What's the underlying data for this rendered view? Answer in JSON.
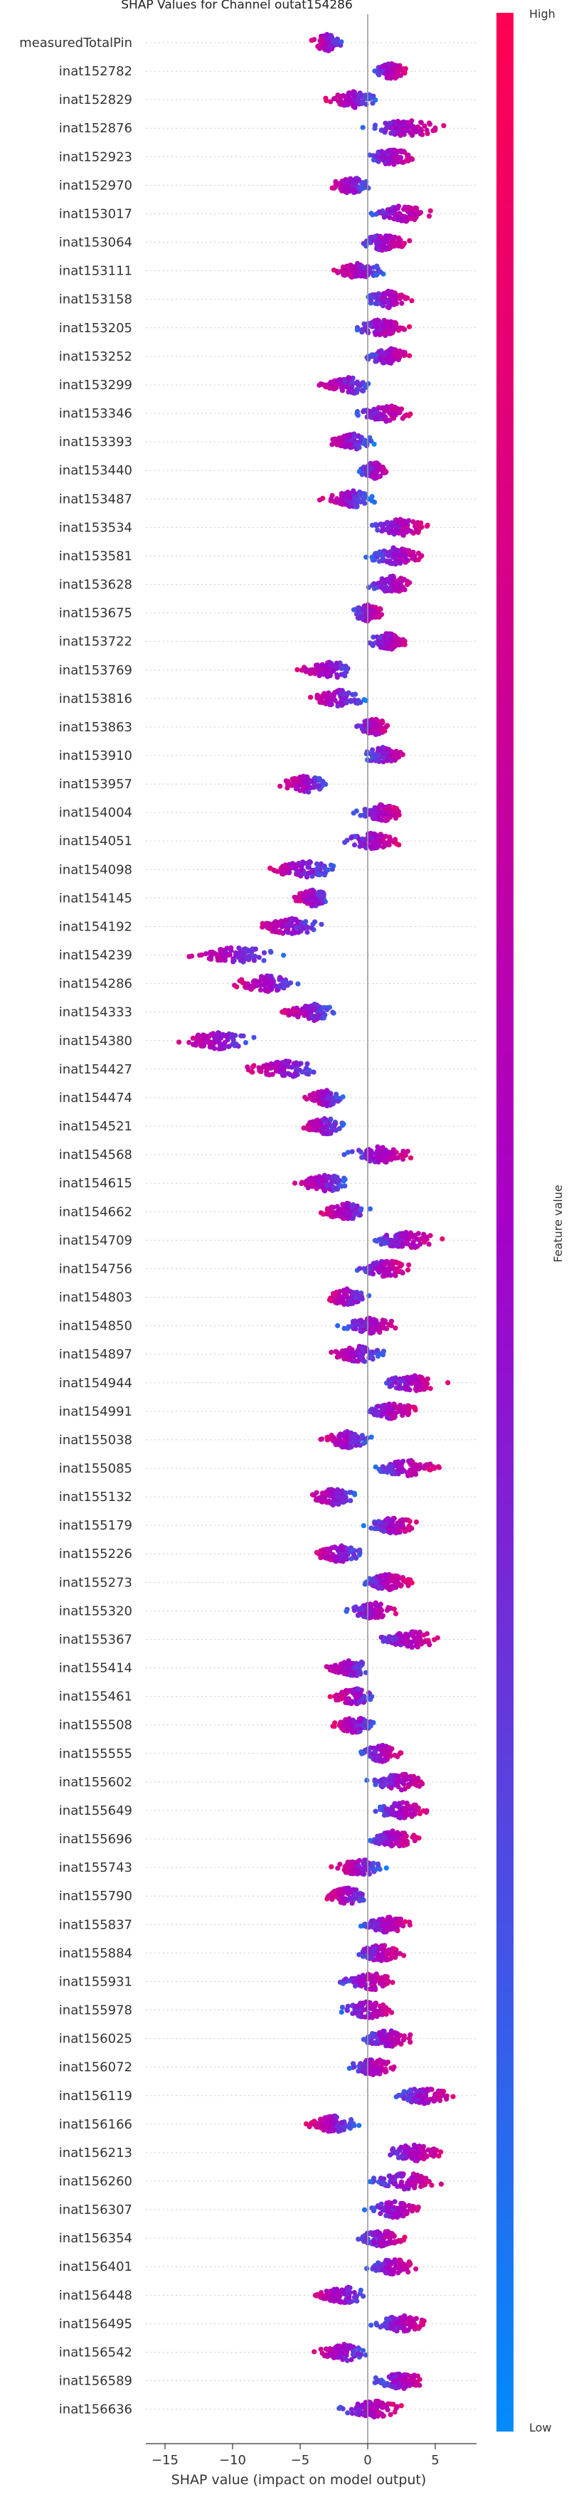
{
  "chart_data": {
    "type": "scatter",
    "subtype": "shap-beeswarm",
    "title": "SHAP Values for Channel outat154286",
    "xlabel": "SHAP value (impact on model output)",
    "xlim": [
      -17,
      8
    ],
    "xticks": [
      -15,
      -10,
      -5,
      0,
      5
    ],
    "colorbar": {
      "label": "Feature value",
      "high_label": "High",
      "low_label": "Low",
      "high_color": "#ff0052",
      "low_color": "#008bfb"
    },
    "features": [
      {
        "name": "measuredTotalPin",
        "lo": -4.5,
        "hi": -1.5,
        "center": -3.0
      },
      {
        "name": "inat152782",
        "lo": 0.0,
        "hi": 3.0,
        "center": 1.8
      },
      {
        "name": "inat152829",
        "lo": -3.5,
        "hi": 1.0,
        "center": -1.0
      },
      {
        "name": "inat152876",
        "lo": -1.0,
        "hi": 6.0,
        "center": 3.0
      },
      {
        "name": "inat152923",
        "lo": -0.5,
        "hi": 4.0,
        "center": 1.8
      },
      {
        "name": "inat152970",
        "lo": -3.5,
        "hi": 0.5,
        "center": -1.2
      },
      {
        "name": "inat153017",
        "lo": -0.5,
        "hi": 5.0,
        "center": 2.5
      },
      {
        "name": "inat153064",
        "lo": -1.0,
        "hi": 3.5,
        "center": 1.2
      },
      {
        "name": "inat153111",
        "lo": -3.0,
        "hi": 1.5,
        "center": -0.5
      },
      {
        "name": "inat153158",
        "lo": -0.5,
        "hi": 3.5,
        "center": 1.5
      },
      {
        "name": "inat153205",
        "lo": -1.5,
        "hi": 3.5,
        "center": 1.0
      },
      {
        "name": "inat153252",
        "lo": -0.5,
        "hi": 3.5,
        "center": 1.5
      },
      {
        "name": "inat153299",
        "lo": -4.5,
        "hi": 0.5,
        "center": -1.0
      },
      {
        "name": "inat153346",
        "lo": -1.5,
        "hi": 3.5,
        "center": 1.5
      },
      {
        "name": "inat153393",
        "lo": -3.5,
        "hi": 0.5,
        "center": -1.0
      },
      {
        "name": "inat153440",
        "lo": -1.0,
        "hi": 2.0,
        "center": 0.5
      },
      {
        "name": "inat153487",
        "lo": -4.0,
        "hi": 0.5,
        "center": -1.0
      },
      {
        "name": "inat153534",
        "lo": -0.5,
        "hi": 5.0,
        "center": 2.5
      },
      {
        "name": "inat153581",
        "lo": -0.5,
        "hi": 5.0,
        "center": 2.0
      },
      {
        "name": "inat153628",
        "lo": -0.5,
        "hi": 4.0,
        "center": 1.8
      },
      {
        "name": "inat153675",
        "lo": -1.5,
        "hi": 1.5,
        "center": 0.0
      },
      {
        "name": "inat153722",
        "lo": -0.5,
        "hi": 3.5,
        "center": 1.5
      },
      {
        "name": "inat153769",
        "lo": -6.0,
        "hi": -0.5,
        "center": -2.5
      },
      {
        "name": "inat153816",
        "lo": -5.0,
        "hi": 0.0,
        "center": -2.0
      },
      {
        "name": "inat153863",
        "lo": -1.5,
        "hi": 2.0,
        "center": 0.5
      },
      {
        "name": "inat153910",
        "lo": -0.5,
        "hi": 3.5,
        "center": 1.0
      },
      {
        "name": "inat153957",
        "lo": -7.0,
        "hi": -2.5,
        "center": -4.5
      },
      {
        "name": "inat154004",
        "lo": -1.5,
        "hi": 3.0,
        "center": 1.2
      },
      {
        "name": "inat154051",
        "lo": -2.5,
        "hi": 3.0,
        "center": 0.5
      },
      {
        "name": "inat154098",
        "lo": -8.5,
        "hi": -2.0,
        "center": -4.5
      },
      {
        "name": "inat154145",
        "lo": -6.0,
        "hi": -2.5,
        "center": -4.0
      },
      {
        "name": "inat154192",
        "lo": -9.0,
        "hi": -3.0,
        "center": -5.5
      },
      {
        "name": "inat154239",
        "lo": -14.5,
        "hi": -6.0,
        "center": -9.5
      },
      {
        "name": "inat154286",
        "lo": -10.5,
        "hi": -4.5,
        "center": -7.5
      },
      {
        "name": "inat154333",
        "lo": -7.0,
        "hi": -2.0,
        "center": -4.0
      },
      {
        "name": "inat154380",
        "lo": -15.0,
        "hi": -7.5,
        "center": -11.0
      },
      {
        "name": "inat154427",
        "lo": -10.0,
        "hi": -3.0,
        "center": -6.0
      },
      {
        "name": "inat154474",
        "lo": -5.0,
        "hi": -1.5,
        "center": -3.0
      },
      {
        "name": "inat154521",
        "lo": -5.5,
        "hi": -1.5,
        "center": -3.0
      },
      {
        "name": "inat154568",
        "lo": -2.0,
        "hi": 4.0,
        "center": 1.0
      },
      {
        "name": "inat154615",
        "lo": -6.0,
        "hi": -1.0,
        "center": -3.0
      },
      {
        "name": "inat154662",
        "lo": -4.0,
        "hi": 0.5,
        "center": -1.5
      },
      {
        "name": "inat154709",
        "lo": -0.5,
        "hi": 6.0,
        "center": 3.0
      },
      {
        "name": "inat154756",
        "lo": -1.5,
        "hi": 3.5,
        "center": 1.5
      },
      {
        "name": "inat154803",
        "lo": -3.5,
        "hi": 0.5,
        "center": -1.5
      },
      {
        "name": "inat154850",
        "lo": -2.5,
        "hi": 3.0,
        "center": 0.5
      },
      {
        "name": "inat154897",
        "lo": -3.5,
        "hi": 1.5,
        "center": -0.5
      },
      {
        "name": "inat154944",
        "lo": 0.0,
        "hi": 6.0,
        "center": 3.5
      },
      {
        "name": "inat154991",
        "lo": -1.0,
        "hi": 4.0,
        "center": 2.0
      },
      {
        "name": "inat155038",
        "lo": -4.0,
        "hi": 0.5,
        "center": -1.5
      },
      {
        "name": "inat155085",
        "lo": 0.0,
        "hi": 5.5,
        "center": 3.0
      },
      {
        "name": "inat155132",
        "lo": -5.0,
        "hi": -0.5,
        "center": -2.5
      },
      {
        "name": "inat155179",
        "lo": -0.5,
        "hi": 4.0,
        "center": 2.0
      },
      {
        "name": "inat155226",
        "lo": -4.5,
        "hi": 0.0,
        "center": -2.0
      },
      {
        "name": "inat155273",
        "lo": -1.0,
        "hi": 3.5,
        "center": 1.5
      },
      {
        "name": "inat155320",
        "lo": -2.0,
        "hi": 2.5,
        "center": 0.5
      },
      {
        "name": "inat155367",
        "lo": -0.5,
        "hi": 6.0,
        "center": 3.5
      },
      {
        "name": "inat155414",
        "lo": -4.0,
        "hi": 0.5,
        "center": -1.0
      },
      {
        "name": "inat155461",
        "lo": -3.0,
        "hi": 1.0,
        "center": -1.0
      },
      {
        "name": "inat155508",
        "lo": -3.0,
        "hi": 1.0,
        "center": -1.0
      },
      {
        "name": "inat155555",
        "lo": -1.0,
        "hi": 3.0,
        "center": 1.0
      },
      {
        "name": "inat155602",
        "lo": -0.5,
        "hi": 5.0,
        "center": 2.5
      },
      {
        "name": "inat155649",
        "lo": 0.0,
        "hi": 5.0,
        "center": 2.5
      },
      {
        "name": "inat155696",
        "lo": -0.5,
        "hi": 4.0,
        "center": 2.0
      },
      {
        "name": "inat155743",
        "lo": -3.0,
        "hi": 1.5,
        "center": -0.5
      },
      {
        "name": "inat155790",
        "lo": -3.5,
        "hi": 0.5,
        "center": -1.5
      },
      {
        "name": "inat155837",
        "lo": -1.0,
        "hi": 3.5,
        "center": 1.5
      },
      {
        "name": "inat155884",
        "lo": -1.5,
        "hi": 3.0,
        "center": 1.0
      },
      {
        "name": "inat155931",
        "lo": -3.0,
        "hi": 2.5,
        "center": 0.5
      },
      {
        "name": "inat155978",
        "lo": -2.5,
        "hi": 2.5,
        "center": 0.0
      },
      {
        "name": "inat156025",
        "lo": -1.0,
        "hi": 4.0,
        "center": 1.5
      },
      {
        "name": "inat156072",
        "lo": -2.0,
        "hi": 2.5,
        "center": 0.5
      },
      {
        "name": "inat156119",
        "lo": 1.5,
        "hi": 7.0,
        "center": 4.0
      },
      {
        "name": "inat156166",
        "lo": -5.0,
        "hi": -0.5,
        "center": -2.5
      },
      {
        "name": "inat156213",
        "lo": 0.5,
        "hi": 6.0,
        "center": 3.5
      },
      {
        "name": "inat156260",
        "lo": -0.5,
        "hi": 6.0,
        "center": 3.0
      },
      {
        "name": "inat156307",
        "lo": -0.5,
        "hi": 4.5,
        "center": 2.0
      },
      {
        "name": "inat156354",
        "lo": -1.0,
        "hi": 3.0,
        "center": 1.0
      },
      {
        "name": "inat156401",
        "lo": -0.5,
        "hi": 4.0,
        "center": 2.0
      },
      {
        "name": "inat156448",
        "lo": -5.0,
        "hi": 0.5,
        "center": -1.5
      },
      {
        "name": "inat156495",
        "lo": 0.0,
        "hi": 5.0,
        "center": 2.5
      },
      {
        "name": "inat156542",
        "lo": -4.5,
        "hi": 0.5,
        "center": -1.5
      },
      {
        "name": "inat156589",
        "lo": 0.0,
        "hi": 5.0,
        "center": 2.5
      },
      {
        "name": "inat156636",
        "lo": -3.0,
        "hi": 3.0,
        "center": 0.5
      }
    ]
  }
}
